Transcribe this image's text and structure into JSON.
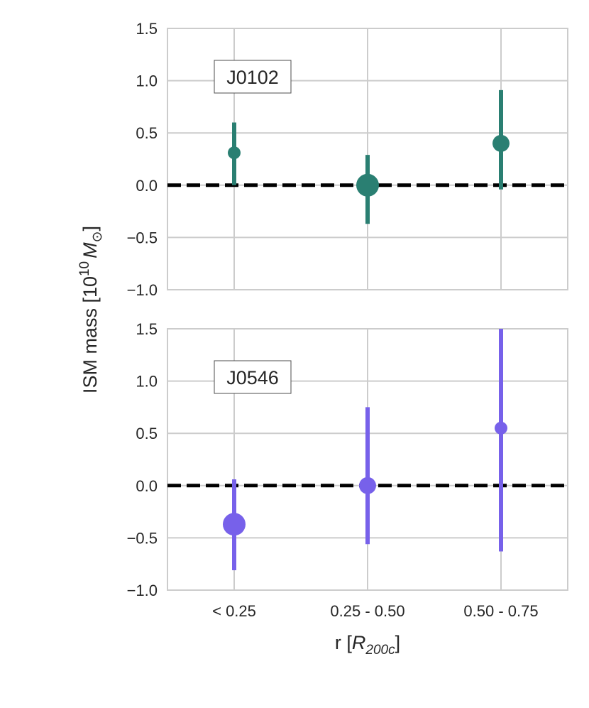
{
  "chart_data": {
    "type": "scatter",
    "categories": [
      "< 0.25",
      "0.25 - 0.50",
      "0.50 - 0.75"
    ],
    "xlabel": {
      "prefix": "r [",
      "symbol": "R",
      "subscript": "200c",
      "suffix": "]"
    },
    "ylabel": {
      "prefix": "ISM mass [10",
      "exponent": "10",
      "symbol": "M",
      "subscript": "⊙",
      "suffix": "]"
    },
    "ylim": [
      -1.0,
      1.5
    ],
    "yticks": [
      "−1.0",
      "−0.5",
      "0.0",
      "0.5",
      "1.0",
      "1.5"
    ],
    "ytick_values": [
      -1.0,
      -0.5,
      0.0,
      0.5,
      1.0,
      1.5
    ],
    "grid": true,
    "reference_line": {
      "y": 0.0,
      "style": "dashed",
      "color": "#000000"
    },
    "panels": [
      {
        "label": "J0102",
        "color": "#2a7f72",
        "points": [
          {
            "category": "< 0.25",
            "y": 0.31,
            "err_low": 0.0,
            "err_high": 0.6,
            "marker": "small"
          },
          {
            "category": "0.25 - 0.50",
            "y": 0.0,
            "err_low": -0.37,
            "err_high": 0.29,
            "marker": "large"
          },
          {
            "category": "0.50 - 0.75",
            "y": 0.4,
            "err_low": -0.04,
            "err_high": 0.91,
            "marker": "medium"
          }
        ]
      },
      {
        "label": "J0546",
        "color": "#7761ea",
        "points": [
          {
            "category": "< 0.25",
            "y": -0.37,
            "err_low": -0.81,
            "err_high": 0.06,
            "marker": "large"
          },
          {
            "category": "0.25 - 0.50",
            "y": 0.0,
            "err_low": -0.56,
            "err_high": 0.75,
            "marker": "medium"
          },
          {
            "category": "0.50 - 0.75",
            "y": 0.55,
            "err_low": -0.63,
            "err_high": 1.5,
            "marker": "small"
          }
        ]
      }
    ]
  }
}
